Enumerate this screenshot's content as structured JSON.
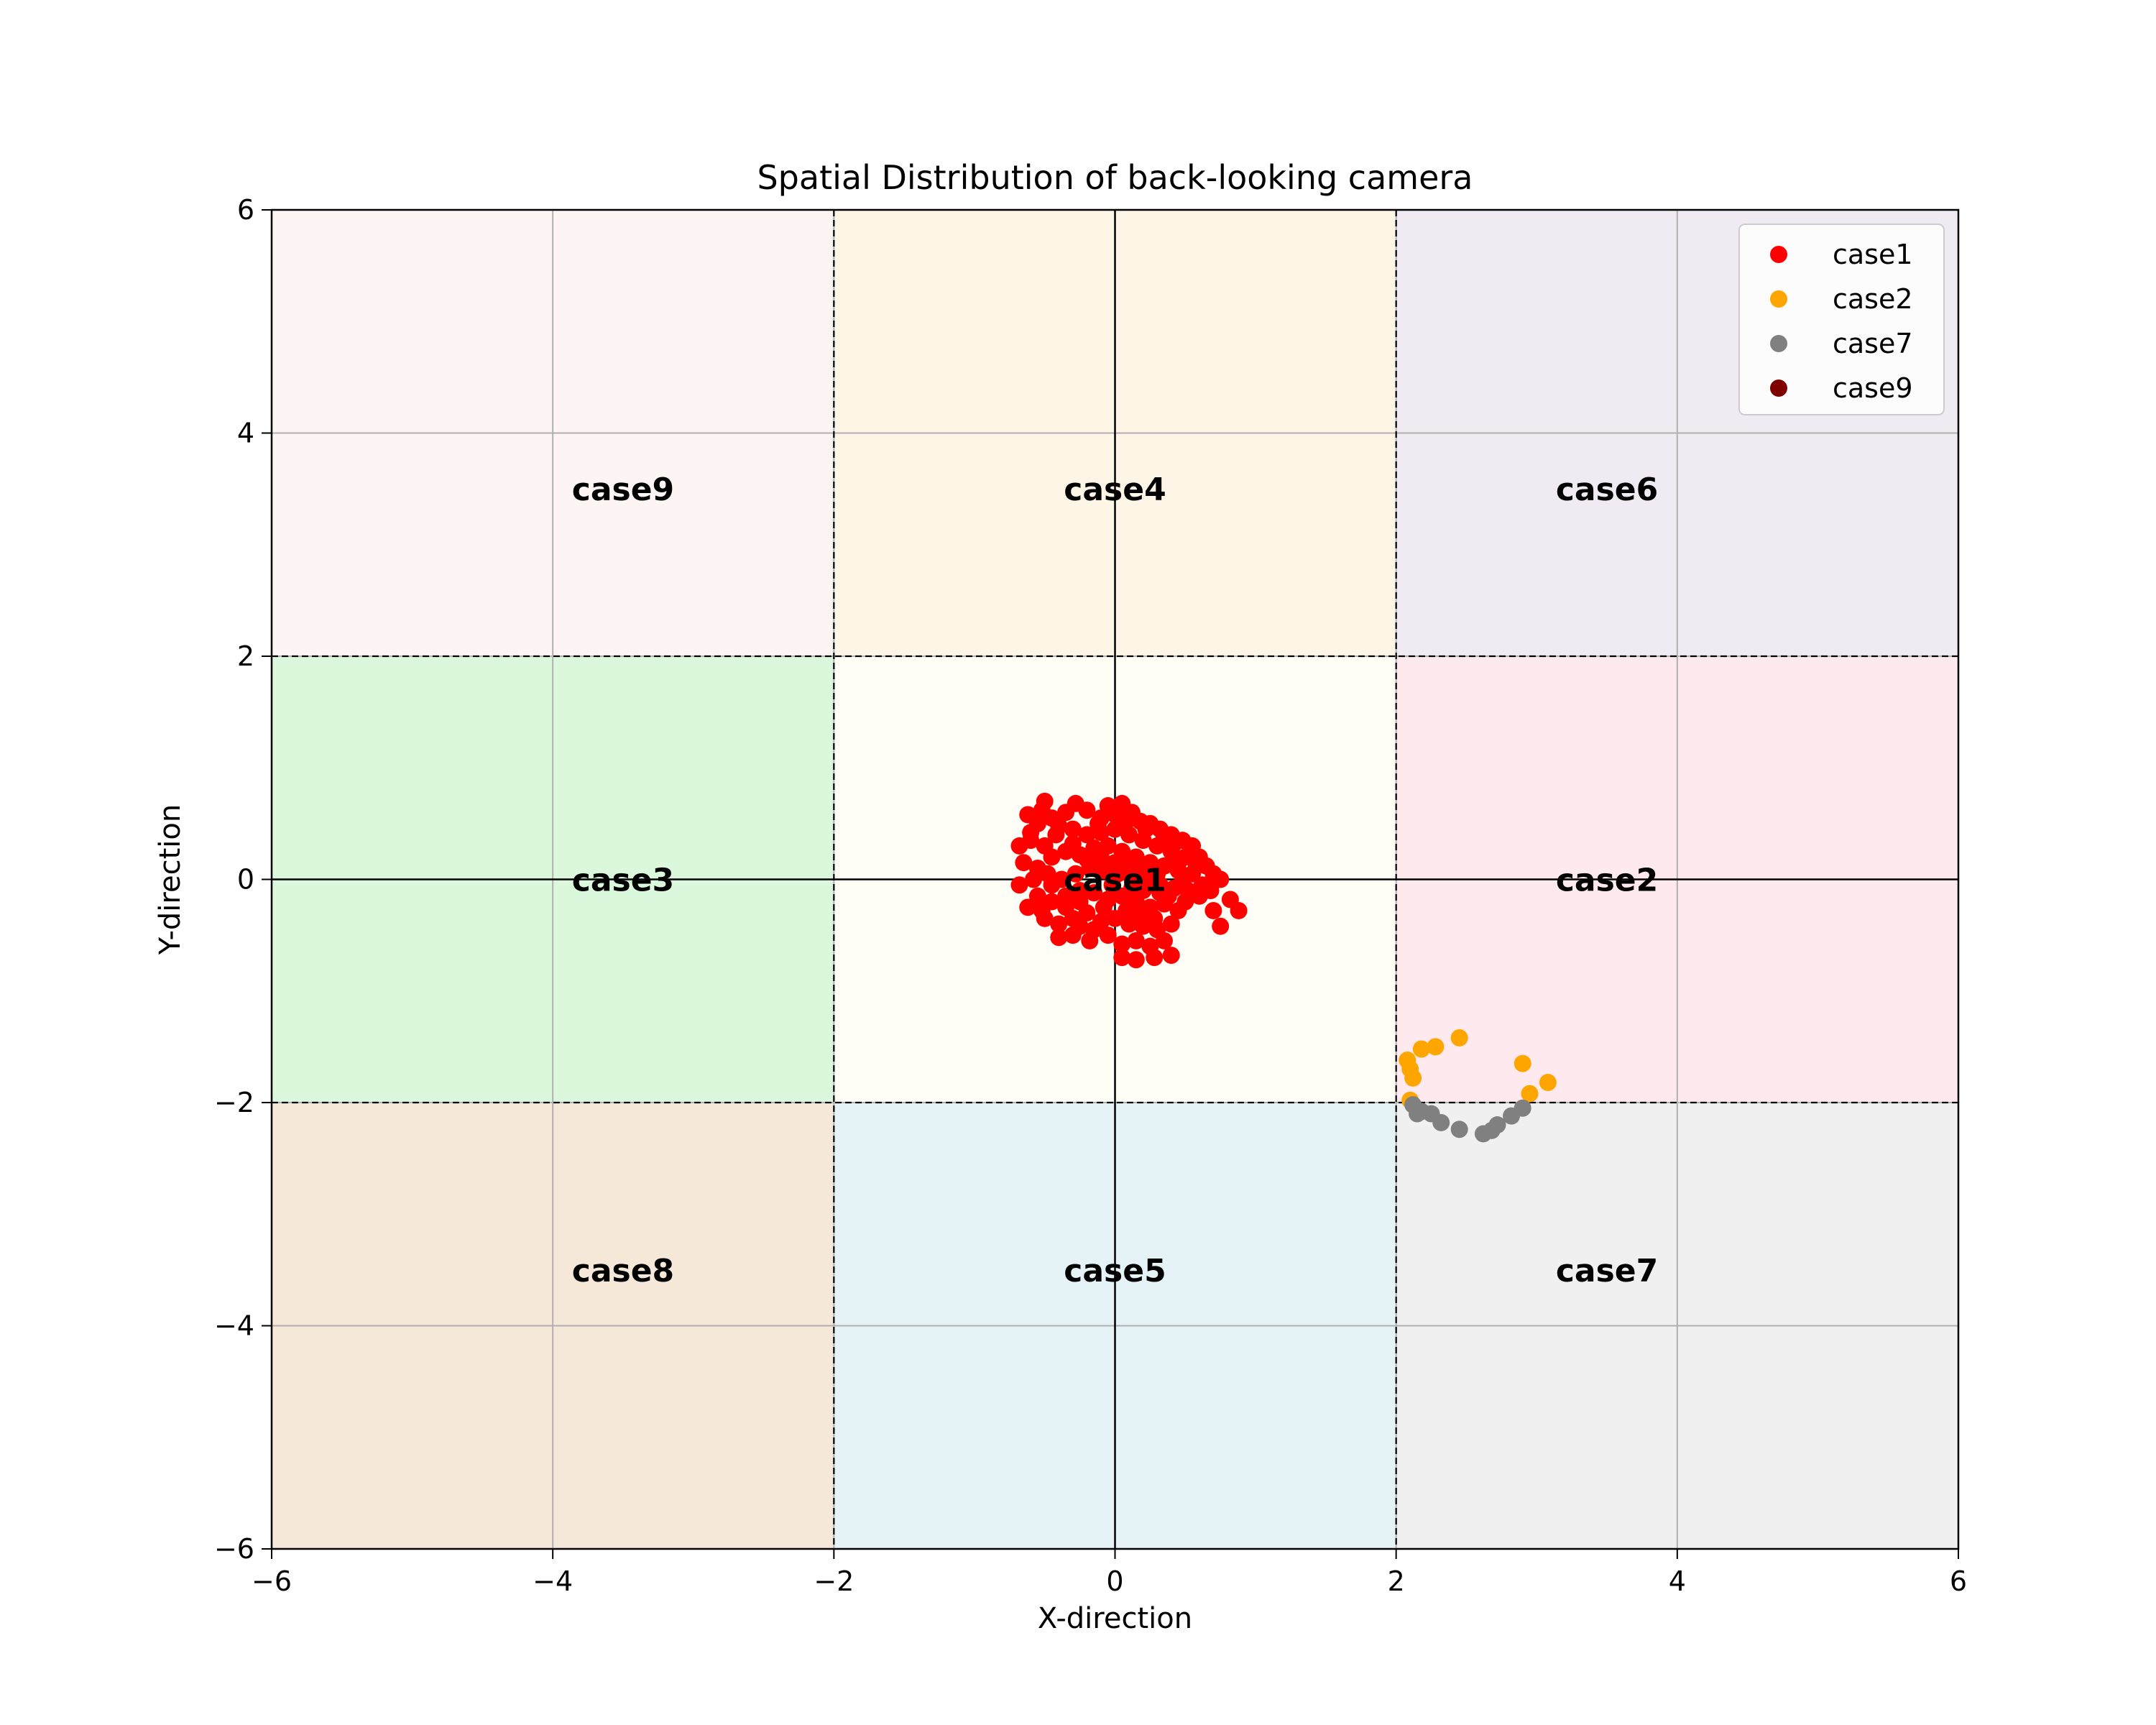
{
  "chart_data": {
    "type": "scatter",
    "title": "Spatial Distribution of back-looking camera",
    "xlabel": "X-direction",
    "ylabel": "Y-direction",
    "xlim": [
      -6,
      6
    ],
    "ylim": [
      -6,
      6
    ],
    "xticks": [
      -6,
      -4,
      -2,
      0,
      2,
      4,
      6
    ],
    "yticks": [
      -6,
      -4,
      -2,
      0,
      2,
      4,
      6
    ],
    "xtick_labels": [
      "−6",
      "−4",
      "−2",
      "0",
      "2",
      "4",
      "6"
    ],
    "ytick_labels": [
      "−6",
      "−4",
      "−2",
      "0",
      "2",
      "4",
      "6"
    ],
    "grid": true,
    "legend_position": "top-right",
    "regions": [
      {
        "name": "case9",
        "x": [
          -6,
          -2
        ],
        "y": [
          2,
          6
        ],
        "color": "#fdf5f4"
      },
      {
        "name": "case4",
        "x": [
          -2,
          2
        ],
        "y": [
          2,
          6
        ],
        "color": "#fdf5e6"
      },
      {
        "name": "case6",
        "x": [
          2,
          6
        ],
        "y": [
          2,
          6
        ],
        "color": "#f0eaf2"
      },
      {
        "name": "case3",
        "x": [
          -6,
          -2
        ],
        "y": [
          -2,
          2
        ],
        "color": "#dbf7dc"
      },
      {
        "name": "case1",
        "x": [
          -2,
          2
        ],
        "y": [
          -2,
          2
        ],
        "color": "#fefef6"
      },
      {
        "name": "case2",
        "x": [
          2,
          6
        ],
        "y": [
          -2,
          2
        ],
        "color": "#fee9ee"
      },
      {
        "name": "case8",
        "x": [
          -6,
          -2
        ],
        "y": [
          -6,
          -2
        ],
        "color": "#f5e8d9"
      },
      {
        "name": "case5",
        "x": [
          -2,
          2
        ],
        "y": [
          -6,
          -2
        ],
        "color": "#e5f3f7"
      },
      {
        "name": "case7",
        "x": [
          2,
          6
        ],
        "y": [
          -6,
          -2
        ],
        "color": "#f0f0f0"
      }
    ],
    "region_labels": [
      {
        "text": "case9",
        "x": -3.5,
        "y": 3.5
      },
      {
        "text": "case4",
        "x": 0,
        "y": 3.5
      },
      {
        "text": "case6",
        "x": 3.5,
        "y": 3.5
      },
      {
        "text": "case3",
        "x": -3.5,
        "y": 0
      },
      {
        "text": "case1",
        "x": 0,
        "y": 0
      },
      {
        "text": "case2",
        "x": 3.5,
        "y": 0
      },
      {
        "text": "case8",
        "x": -3.5,
        "y": -3.5
      },
      {
        "text": "case5",
        "x": 0,
        "y": -3.5
      },
      {
        "text": "case7",
        "x": 3.5,
        "y": -3.5
      }
    ],
    "series": [
      {
        "name": "case1",
        "color": "#ff0000",
        "points": [
          [
            -0.5,
            0.7
          ],
          [
            -0.62,
            0.58
          ],
          [
            -0.55,
            0.5
          ],
          [
            -0.45,
            0.55
          ],
          [
            -0.35,
            0.6
          ],
          [
            -0.28,
            0.68
          ],
          [
            -0.2,
            0.62
          ],
          [
            -0.1,
            0.55
          ],
          [
            -0.05,
            0.66
          ],
          [
            0.05,
            0.68
          ],
          [
            0.12,
            0.6
          ],
          [
            0.18,
            0.52
          ],
          [
            0.25,
            0.5
          ],
          [
            0.32,
            0.45
          ],
          [
            0.4,
            0.4
          ],
          [
            0.48,
            0.35
          ],
          [
            0.55,
            0.3
          ],
          [
            0.6,
            0.2
          ],
          [
            0.65,
            0.12
          ],
          [
            0.7,
            0.05
          ],
          [
            0.75,
            0.0
          ],
          [
            -0.68,
            0.3
          ],
          [
            -0.6,
            0.35
          ],
          [
            -0.5,
            0.3
          ],
          [
            -0.42,
            0.4
          ],
          [
            -0.3,
            0.45
          ],
          [
            -0.2,
            0.4
          ],
          [
            -0.1,
            0.42
          ],
          [
            0.0,
            0.45
          ],
          [
            0.1,
            0.4
          ],
          [
            0.2,
            0.35
          ],
          [
            0.3,
            0.3
          ],
          [
            0.4,
            0.25
          ],
          [
            0.5,
            0.2
          ],
          [
            -0.65,
            0.15
          ],
          [
            -0.55,
            0.1
          ],
          [
            -0.45,
            0.2
          ],
          [
            -0.35,
            0.25
          ],
          [
            -0.25,
            0.22
          ],
          [
            -0.15,
            0.28
          ],
          [
            -0.05,
            0.3
          ],
          [
            0.05,
            0.25
          ],
          [
            0.15,
            0.2
          ],
          [
            0.25,
            0.15
          ],
          [
            0.35,
            0.12
          ],
          [
            0.45,
            0.08
          ],
          [
            0.55,
            0.05
          ],
          [
            -0.68,
            -0.05
          ],
          [
            -0.58,
            0.0
          ],
          [
            -0.48,
            0.05
          ],
          [
            -0.38,
            0.0
          ],
          [
            -0.28,
            0.05
          ],
          [
            -0.18,
            0.1
          ],
          [
            -0.08,
            0.08
          ],
          [
            0.02,
            0.05
          ],
          [
            0.12,
            0.02
          ],
          [
            0.22,
            -0.02
          ],
          [
            0.32,
            -0.05
          ],
          [
            0.42,
            -0.08
          ],
          [
            0.52,
            -0.1
          ],
          [
            0.62,
            -0.05
          ],
          [
            -0.55,
            -0.15
          ],
          [
            -0.45,
            -0.2
          ],
          [
            -0.35,
            -0.15
          ],
          [
            -0.25,
            -0.1
          ],
          [
            -0.15,
            -0.12
          ],
          [
            -0.05,
            -0.18
          ],
          [
            0.05,
            -0.15
          ],
          [
            0.15,
            -0.2
          ],
          [
            0.25,
            -0.25
          ],
          [
            0.35,
            -0.22
          ],
          [
            0.45,
            -0.28
          ],
          [
            -0.5,
            -0.35
          ],
          [
            -0.4,
            -0.4
          ],
          [
            -0.3,
            -0.35
          ],
          [
            -0.2,
            -0.3
          ],
          [
            -0.1,
            -0.38
          ],
          [
            0.0,
            -0.35
          ],
          [
            0.1,
            -0.4
          ],
          [
            0.2,
            -0.42
          ],
          [
            0.3,
            -0.45
          ],
          [
            0.4,
            -0.4
          ],
          [
            -0.4,
            -0.52
          ],
          [
            -0.3,
            -0.5
          ],
          [
            -0.18,
            -0.55
          ],
          [
            -0.05,
            -0.5
          ],
          [
            0.05,
            -0.58
          ],
          [
            0.15,
            -0.55
          ],
          [
            0.25,
            -0.6
          ],
          [
            0.35,
            -0.55
          ],
          [
            0.05,
            -0.7
          ],
          [
            0.15,
            -0.72
          ],
          [
            0.28,
            -0.7
          ],
          [
            0.4,
            -0.68
          ],
          [
            0.7,
            -0.28
          ],
          [
            0.75,
            -0.42
          ],
          [
            0.82,
            -0.18
          ],
          [
            0.88,
            -0.28
          ],
          [
            0.6,
            -0.15
          ],
          [
            0.68,
            -0.1
          ],
          [
            0.5,
            -0.2
          ],
          [
            -0.6,
            0.42
          ],
          [
            -0.52,
            0.62
          ],
          [
            -0.4,
            0.48
          ],
          [
            -0.3,
            0.32
          ],
          [
            -0.2,
            0.18
          ],
          [
            -0.1,
            0.2
          ],
          [
            0.0,
            0.15
          ],
          [
            0.1,
            0.12
          ],
          [
            0.2,
            0.08
          ],
          [
            0.3,
            0.05
          ],
          [
            -0.45,
            -0.05
          ],
          [
            -0.35,
            -0.25
          ],
          [
            -0.25,
            -0.42
          ],
          [
            -0.15,
            -0.45
          ],
          [
            0.08,
            -0.28
          ],
          [
            0.18,
            -0.32
          ],
          [
            0.28,
            -0.35
          ],
          [
            0.38,
            -0.15
          ],
          [
            0.48,
            -0.02
          ],
          [
            0.58,
            0.12
          ],
          [
            -0.62,
            -0.25
          ],
          [
            -0.52,
            -0.28
          ],
          [
            0.0,
            0.58
          ],
          [
            0.08,
            0.52
          ],
          [
            -0.12,
            0.5
          ],
          [
            0.22,
            0.45
          ],
          [
            0.35,
            0.38
          ],
          [
            0.42,
            0.32
          ],
          [
            -0.25,
            -0.2
          ],
          [
            0.12,
            -0.08
          ],
          [
            -0.02,
            -0.05
          ],
          [
            0.2,
            -0.1
          ],
          [
            -0.08,
            -0.25
          ],
          [
            0.32,
            -0.12
          ],
          [
            0.45,
            0.15
          ]
        ]
      },
      {
        "name": "case2",
        "color": "#ffa500",
        "points": [
          [
            2.45,
            -1.42
          ],
          [
            2.18,
            -1.52
          ],
          [
            2.28,
            -1.5
          ],
          [
            2.08,
            -1.62
          ],
          [
            2.1,
            -1.7
          ],
          [
            2.12,
            -1.78
          ],
          [
            2.9,
            -1.65
          ],
          [
            3.08,
            -1.82
          ],
          [
            2.95,
            -1.92
          ],
          [
            2.1,
            -1.98
          ]
        ]
      },
      {
        "name": "case7",
        "color": "#808080",
        "points": [
          [
            2.12,
            -2.02
          ],
          [
            2.18,
            -2.08
          ],
          [
            2.25,
            -2.1
          ],
          [
            2.32,
            -2.18
          ],
          [
            2.45,
            -2.24
          ],
          [
            2.62,
            -2.28
          ],
          [
            2.68,
            -2.25
          ],
          [
            2.72,
            -2.2
          ],
          [
            2.82,
            -2.12
          ],
          [
            2.9,
            -2.05
          ],
          [
            2.15,
            -2.1
          ]
        ]
      },
      {
        "name": "case9",
        "color": "#800000",
        "points": []
      }
    ]
  }
}
